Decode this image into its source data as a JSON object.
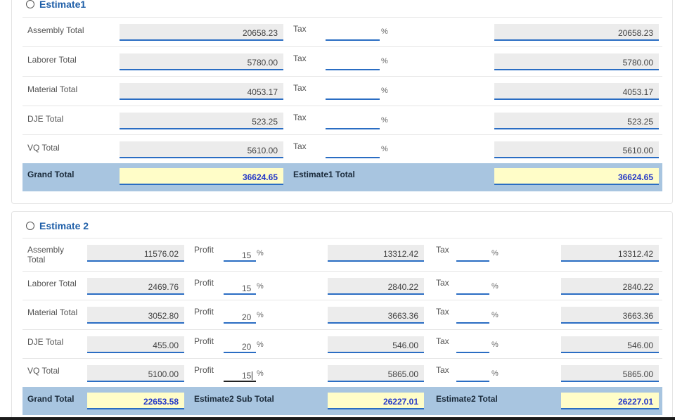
{
  "estimate1": {
    "title": "Estimate1",
    "tax_label": "Tax",
    "pct": "%",
    "rows": [
      {
        "label": "Assembly Total",
        "value": "20658.23",
        "result": "20658.23"
      },
      {
        "label": "Laborer Total",
        "value": "5780.00",
        "result": "5780.00"
      },
      {
        "label": "Material Total",
        "value": "4053.17",
        "result": "4053.17"
      },
      {
        "label": "DJE Total",
        "value": "523.25",
        "result": "523.25"
      },
      {
        "label": "VQ Total",
        "value": "5610.00",
        "result": "5610.00"
      }
    ],
    "grand_total_label": "Grand Total",
    "grand_total": "36624.65",
    "estimate_total_label": "Estimate1 Total",
    "estimate_total": "36624.65"
  },
  "estimate2": {
    "title": "Estimate 2",
    "profit_label": "Profit",
    "tax_label": "Tax",
    "pct": "%",
    "rows": [
      {
        "label_l1": "Assembly",
        "label_l2": "Total",
        "value": "11576.02",
        "profit": "15",
        "subtotal": "13312.42",
        "result": "13312.42"
      },
      {
        "label_l1": "Laborer Total",
        "label_l2": "",
        "value": "2469.76",
        "profit": "15",
        "subtotal": "2840.22",
        "result": "2840.22"
      },
      {
        "label_l1": "Material Total",
        "label_l2": "",
        "value": "3052.80",
        "profit": "20",
        "subtotal": "3663.36",
        "result": "3663.36"
      },
      {
        "label_l1": "DJE Total",
        "label_l2": "",
        "value": "455.00",
        "profit": "20",
        "subtotal": "546.00",
        "result": "546.00"
      },
      {
        "label_l1": "VQ Total",
        "label_l2": "",
        "value": "5100.00",
        "profit": "15",
        "subtotal": "5865.00",
        "result": "5865.00"
      }
    ],
    "grand_total_label": "Grand Total",
    "grand_total": "22653.58",
    "sub_total_label": "Estimate2 Sub Total",
    "sub_total": "26227.01",
    "estimate_total_label": "Estimate2 Total",
    "estimate_total": "26227.01"
  }
}
